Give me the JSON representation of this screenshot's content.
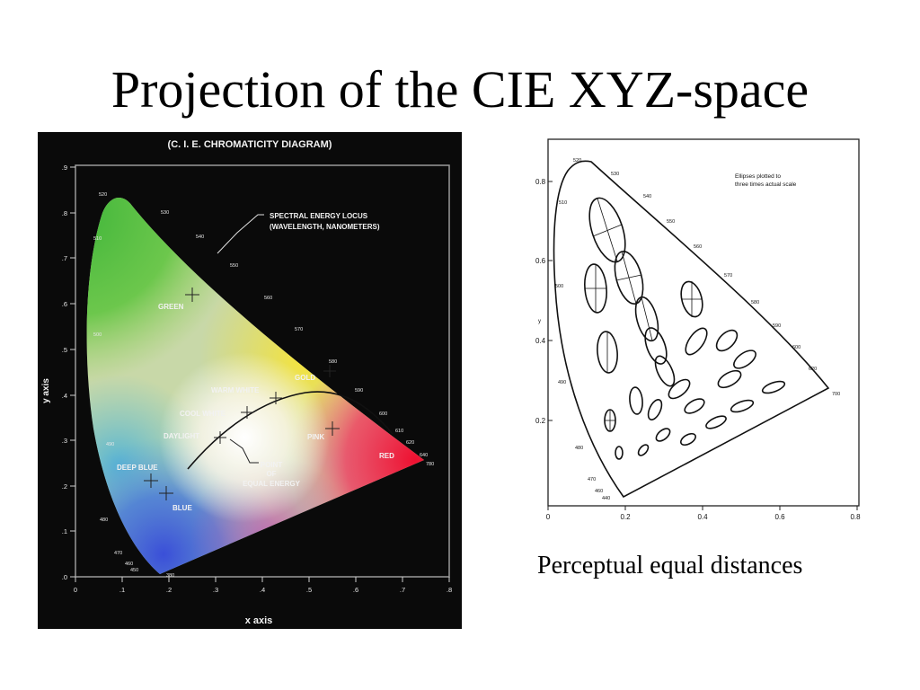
{
  "slide": {
    "title": "Projection of the CIE XYZ-space",
    "caption": "Perceptual equal distances"
  },
  "cie_diagram": {
    "title": "(C. I. E.  CHROMATICITY  DIAGRAM)",
    "x_axis_label": "x  axis",
    "y_axis_label": "y  axis",
    "x_ticks": [
      "0",
      ".1",
      ".2",
      ".3",
      ".4",
      ".5",
      ".6",
      ".7",
      ".8"
    ],
    "y_ticks": [
      ".9",
      ".8",
      ".7",
      ".6",
      ".5",
      ".4",
      ".3",
      ".2",
      ".1",
      ".0"
    ],
    "locus_label_line1": "SPECTRAL ENERGY LOCUS",
    "locus_label_line2": "(WAVELENGTH, NANOMETERS)",
    "wavelengths": [
      "520",
      "530",
      "510",
      "540",
      "550",
      "560",
      "500",
      "570",
      "580",
      "590",
      "600",
      "610",
      "620",
      "640",
      "780",
      "490",
      "480",
      "470",
      "460",
      "450",
      "380"
    ],
    "regions": {
      "green": "GREEN",
      "gold": "GOLD",
      "warm_white": "WARM WHITE",
      "cool_white": "COOL WHITE",
      "daylight": "DAYLIGHT",
      "pink": "PINK",
      "red": "RED",
      "deep_blue": "DEEP BLUE",
      "blue": "BLUE",
      "point_line1": "POINT",
      "point_line2": "OF",
      "point_line3": "EQUAL  ENERGY"
    }
  },
  "macadam_diagram": {
    "note_line1": "Ellipses plotted to",
    "note_line2": "three times actual scale",
    "x_ticks": [
      "0",
      "0.2",
      "0.4",
      "0.6",
      "0.8"
    ],
    "y_ticks": [
      "0.8",
      "0.6",
      "0.4",
      "0.2"
    ],
    "y_axis_label": "y",
    "x_axis_label": "x",
    "wavelengths": [
      "520",
      "530",
      "510",
      "540",
      "550",
      "500",
      "560",
      "570",
      "580",
      "490",
      "590",
      "600",
      "620",
      "700",
      "480",
      "470",
      "460",
      "440"
    ]
  },
  "colors": {
    "background": "#ffffff",
    "cie_panel_background": "#0a0a0a",
    "label_color": "#f2f2f2",
    "ellipse_stroke": "#111111"
  }
}
